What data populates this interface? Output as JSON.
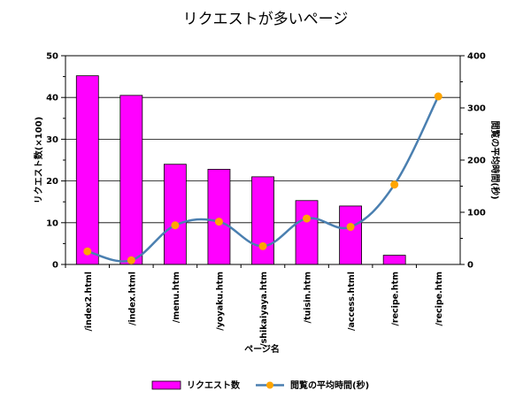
{
  "chart_data": {
    "type": "bar",
    "title": "リクエストが多いページ",
    "xlabel": "ページ名",
    "ylabel": "リクエスト数(×100)",
    "y2label": "閲覧の平均時間(秒)",
    "categories": [
      "/index2.html",
      "/index.html",
      "/menu.htm",
      "/yoyaku.htm",
      "/shikaiyaya.htm",
      "/tuisin.htm",
      "/access.html",
      "/recipe.htm",
      "/recipe.htm"
    ],
    "ylim": [
      0,
      50
    ],
    "yticks": [
      0,
      10,
      20,
      30,
      40,
      50
    ],
    "y2lim": [
      0,
      400
    ],
    "y2ticks": [
      0,
      100,
      200,
      300,
      400
    ],
    "grid": true,
    "legend_position": "bottom",
    "series": [
      {
        "name": "リクエスト数",
        "kind": "bar",
        "axis": "left",
        "color": "#ff00ff",
        "values": [
          45.2,
          40.5,
          24.0,
          22.8,
          21.0,
          15.3,
          14.0,
          2.2,
          0
        ]
      },
      {
        "name": "閲覧の平均時間(秒)",
        "kind": "line",
        "axis": "right",
        "color": "#4a7fb0",
        "marker_color": "#ffa500",
        "values": [
          25,
          8,
          75,
          82,
          35,
          88,
          72,
          153,
          322
        ]
      }
    ]
  }
}
